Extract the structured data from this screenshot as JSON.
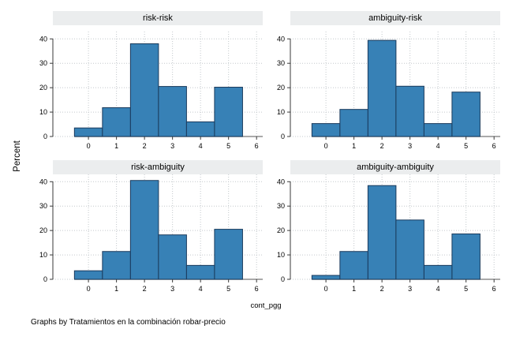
{
  "figure": {
    "ylabel": "Percent",
    "xlabel": "cont_pgg",
    "caption": "Graphs by Tratamientos en la combinación robar-precio",
    "colors": {
      "background": "#ffffff",
      "bar_fill": "#3781b6",
      "bar_stroke": "#1a3a5c",
      "band_bg": "#ebedee",
      "grid": "#c3c8cc",
      "y_axis": "#3a3a3a",
      "x_axis": "#8e8e8e",
      "tick": "#3a3a3a",
      "label": "#000000"
    }
  },
  "chart_data": {
    "type": "bar",
    "layout": "2x2 small multiples (Stata by-graph histograms)",
    "title": "",
    "xlabel": "cont_pgg",
    "ylabel": "Percent",
    "categories": [
      0,
      1,
      2,
      3,
      4,
      5
    ],
    "bin_width": 1,
    "x_ticks": [
      0,
      1,
      2,
      3,
      4,
      5,
      6
    ],
    "y_ticks": [
      0,
      10,
      20,
      30,
      40
    ],
    "ylim": [
      0,
      43
    ],
    "xlim": [
      -1.27,
      6.22
    ],
    "grid": "dotted horizontal and vertical at major ticks",
    "legend": "none",
    "panels": [
      {
        "title": "risk-risk",
        "values": [
          3.5,
          11.8,
          38.0,
          20.5,
          6.0,
          20.2
        ]
      },
      {
        "title": "ambiguity-risk",
        "values": [
          5.3,
          11.1,
          39.4,
          20.6,
          5.3,
          18.2
        ]
      },
      {
        "title": "risk-ambiguity",
        "values": [
          3.5,
          11.4,
          40.5,
          18.2,
          5.7,
          20.5
        ]
      },
      {
        "title": "ambiguity-ambiguity",
        "values": [
          1.6,
          11.4,
          38.4,
          24.3,
          5.7,
          18.6
        ]
      }
    ]
  }
}
